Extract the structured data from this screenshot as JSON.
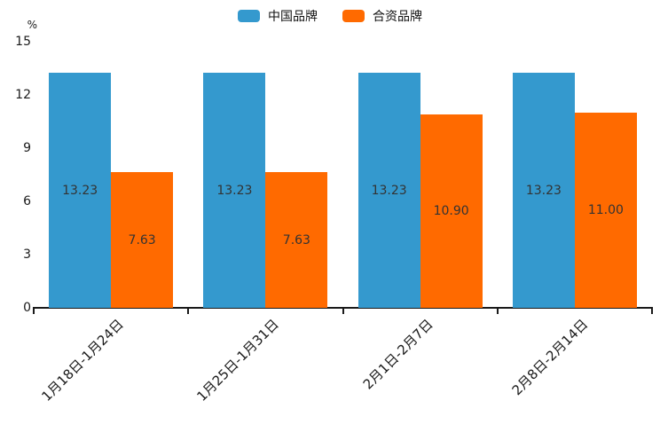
{
  "chart_data": {
    "type": "bar",
    "categories": [
      "1月18日-1月24日",
      "1月25日-1月31日",
      "2月1日-2月7日",
      "2月8日-2月14日"
    ],
    "series": [
      {
        "name": "中国品牌",
        "color": "#3499CE",
        "values": [
          13.23,
          13.23,
          13.23,
          13.23
        ]
      },
      {
        "name": "合资品牌",
        "color": "#FF6A00",
        "values": [
          7.63,
          7.63,
          10.9,
          11.0
        ]
      }
    ],
    "title": "",
    "xlabel": "",
    "ylabel": "%",
    "ylim": [
      0,
      15
    ],
    "yticks": [
      0,
      3,
      6,
      9,
      12,
      15
    ],
    "grid": false,
    "legend_position": "top",
    "value_labels": true,
    "value_label_color": "#333333",
    "axis_color": "#1a1a1a",
    "background_color": "#ffffff"
  }
}
